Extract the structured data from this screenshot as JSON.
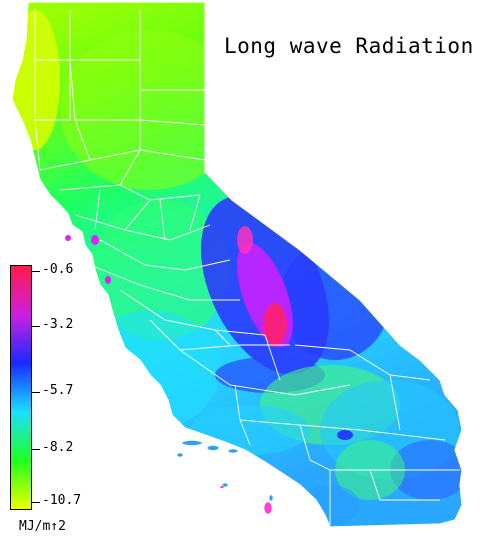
{
  "title": "Long wave Radiation",
  "legend": {
    "ticks": [
      "-0.6",
      "-3.2",
      "-5.7",
      "-8.2",
      "-10.7"
    ],
    "unit": "MJ/m↑2",
    "colors": [
      "#ff1a4a",
      "#cc20e0",
      "#1a2aff",
      "#1ae0ff",
      "#20ff20",
      "#f0ff00"
    ]
  },
  "map": {
    "colors": {
      "north": "#7fff10",
      "central": "#30ff80",
      "coast": "#28e8ff",
      "desert_low": "#22c0ff",
      "sierra": "#2a30ff",
      "sierra_peak": "#e020ff",
      "hot": "#ff2060",
      "south_green": "#60ff40",
      "boundary": "#ffffff"
    }
  }
}
